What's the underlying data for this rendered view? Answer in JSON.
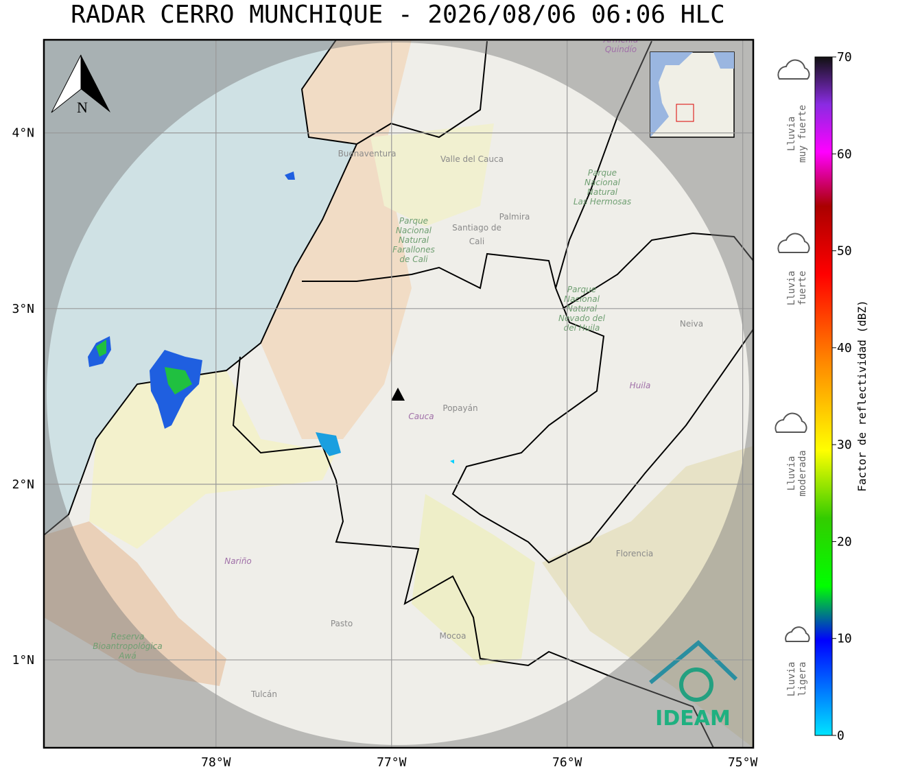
{
  "title": "RADAR CERRO MUNCHIQUE - 2026/08/06 06:06 HLC",
  "map": {
    "xlim": [
      -78.98,
      -74.94
    ],
    "ylim": [
      0.5,
      4.53
    ],
    "xticks": [
      {
        "value": -78,
        "label": "78°W"
      },
      {
        "value": -77,
        "label": "77°W"
      },
      {
        "value": -76,
        "label": "76°W"
      },
      {
        "value": -75,
        "label": "75°W"
      }
    ],
    "yticks": [
      {
        "value": 1,
        "label": "1°N"
      },
      {
        "value": 2,
        "label": "2°N"
      },
      {
        "value": 3,
        "label": "3°N"
      },
      {
        "value": 4,
        "label": "4°N"
      }
    ],
    "north_label": "N",
    "logo": "IDEAM",
    "places": [
      {
        "lines": [
          "Buenaventura"
        ]
      },
      {
        "lines": [
          "Valle del Cauca"
        ]
      },
      {
        "lines": [
          "Palmira"
        ]
      },
      {
        "lines": [
          "Santiago de",
          "Cali"
        ]
      },
      {
        "lines": [
          "Parque",
          "Nacional",
          "Natural",
          "Farallones",
          "de Cali"
        ]
      },
      {
        "lines": [
          "Parque",
          "Nacional",
          "Natural",
          "Las Hermosas"
        ]
      },
      {
        "lines": [
          "Parque",
          "Nacional",
          "Natural",
          "Nevado del",
          "del Huila"
        ]
      },
      {
        "lines": [
          "Neiva"
        ]
      },
      {
        "lines": [
          "Huila"
        ]
      },
      {
        "lines": [
          "Cauca"
        ]
      },
      {
        "lines": [
          "Popayán"
        ]
      },
      {
        "lines": [
          "Nariño"
        ]
      },
      {
        "lines": [
          "Florencia"
        ]
      },
      {
        "lines": [
          "Pasto"
        ]
      },
      {
        "lines": [
          "Mocoa"
        ]
      },
      {
        "lines": [
          "Tulcán"
        ]
      },
      {
        "lines": [
          "Reserva",
          "Bioantropológica",
          "Awá"
        ]
      },
      {
        "lines": [
          "Armenia",
          "Quindío"
        ]
      }
    ]
  },
  "colorbar": {
    "label": "Factor de reflectividad (dBZ)",
    "lim": [
      0,
      70
    ],
    "ticks": [
      0,
      10,
      20,
      30,
      40,
      50,
      60,
      70
    ]
  },
  "rain_categories": [
    {
      "lines": [
        "Lluvia",
        "muy fuerte"
      ]
    },
    {
      "lines": [
        "Lluvia",
        "fuerte"
      ]
    },
    {
      "lines": [
        "Lluvia",
        "moderada"
      ]
    },
    {
      "lines": [
        "Lluvia",
        "ligera"
      ]
    }
  ]
}
